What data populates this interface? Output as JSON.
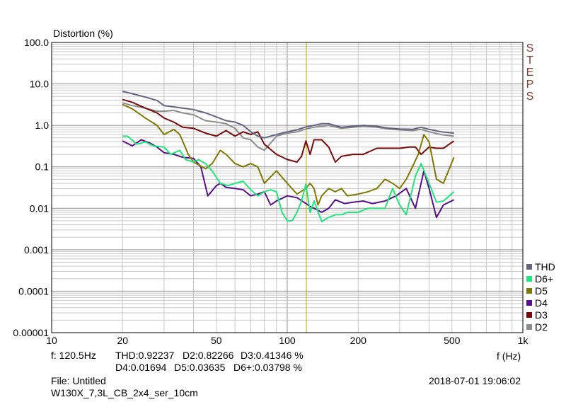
{
  "chart_data": {
    "type": "line",
    "ylabel": "Distortion (%)",
    "xlabel": "f (Hz)",
    "x_scale": "log",
    "y_scale": "log",
    "xlim": [
      10,
      1000
    ],
    "ylim": [
      1e-05,
      100
    ],
    "grid": true,
    "legend_position": "right-bottom",
    "x_ticks": [
      {
        "value": 10,
        "label": "10"
      },
      {
        "value": 20,
        "label": "20"
      },
      {
        "value": 50,
        "label": "50"
      },
      {
        "value": 100,
        "label": "100"
      },
      {
        "value": 200,
        "label": "200"
      },
      {
        "value": 500,
        "label": "500"
      },
      {
        "value": 1000,
        "label": "1k"
      }
    ],
    "y_ticks": [
      {
        "value": 100,
        "label": "100.0"
      },
      {
        "value": 10,
        "label": "10.0"
      },
      {
        "value": 1,
        "label": "1.0"
      },
      {
        "value": 0.1,
        "label": "0.1"
      },
      {
        "value": 0.01,
        "label": "0.01"
      },
      {
        "value": 0.001,
        "label": "0.001"
      },
      {
        "value": 0.0001,
        "label": "0.0001"
      },
      {
        "value": 1e-05,
        "label": "0.00001"
      }
    ],
    "cursor_x": 120.5,
    "series": [
      {
        "name": "THD",
        "color": "#646482",
        "x": [
          20,
          22,
          25,
          28,
          30,
          33,
          36,
          40,
          45,
          50,
          55,
          60,
          65,
          70,
          75,
          80,
          90,
          100,
          110,
          120,
          130,
          140,
          150,
          170,
          190,
          210,
          240,
          270,
          300,
          340,
          370,
          400,
          450,
          510
        ],
        "y": [
          6.6,
          5.8,
          4.8,
          4.0,
          3.0,
          2.8,
          2.6,
          2.4,
          2.0,
          1.6,
          1.3,
          1.2,
          1.0,
          0.7,
          0.55,
          0.5,
          0.6,
          0.7,
          0.78,
          0.92,
          1.0,
          1.1,
          1.1,
          0.9,
          0.95,
          1.0,
          0.95,
          0.85,
          0.82,
          0.8,
          0.9,
          0.8,
          0.7,
          0.65
        ]
      },
      {
        "name": "D6+",
        "color": "#1ee67a",
        "x": [
          20,
          21,
          23,
          25,
          27,
          30,
          32,
          35,
          37,
          40,
          42,
          45,
          48,
          52,
          56,
          60,
          65,
          70,
          75,
          80,
          85,
          90,
          95,
          100,
          105,
          110,
          115,
          120,
          125,
          130,
          140,
          150,
          160,
          170,
          180,
          200,
          220,
          240,
          260,
          280,
          300,
          320,
          350,
          370,
          400,
          430,
          460,
          510
        ],
        "y": [
          0.55,
          0.55,
          0.35,
          0.4,
          0.32,
          0.3,
          0.2,
          0.25,
          0.15,
          0.13,
          0.15,
          0.12,
          0.08,
          0.04,
          0.035,
          0.04,
          0.045,
          0.028,
          0.02,
          0.025,
          0.028,
          0.025,
          0.008,
          0.005,
          0.005,
          0.008,
          0.015,
          0.038,
          0.008,
          0.015,
          0.0048,
          0.006,
          0.007,
          0.007,
          0.008,
          0.008,
          0.01,
          0.01,
          0.01,
          0.03,
          0.012,
          0.007,
          0.06,
          0.12,
          0.04,
          0.014,
          0.015,
          0.025
        ]
      },
      {
        "name": "D5",
        "color": "#807800",
        "x": [
          20,
          22,
          25,
          28,
          30,
          33,
          35,
          38,
          40,
          45,
          48,
          52,
          55,
          60,
          65,
          70,
          75,
          80,
          90,
          100,
          110,
          120,
          125,
          130,
          135,
          140,
          150,
          160,
          170,
          180,
          200,
          220,
          240,
          260,
          280,
          300,
          320,
          340,
          360,
          380,
          400,
          430,
          460,
          510
        ],
        "y": [
          3.2,
          2.5,
          1.5,
          1.0,
          0.6,
          0.8,
          0.6,
          0.2,
          0.13,
          0.09,
          0.12,
          0.25,
          0.2,
          0.12,
          0.1,
          0.12,
          0.1,
          0.04,
          0.08,
          0.04,
          0.022,
          0.03,
          0.04,
          0.03,
          0.012,
          0.02,
          0.03,
          0.025,
          0.03,
          0.02,
          0.022,
          0.025,
          0.03,
          0.05,
          0.04,
          0.03,
          0.05,
          0.1,
          0.2,
          0.6,
          0.4,
          0.05,
          0.04,
          0.17
        ]
      },
      {
        "name": "D4",
        "color": "#5a0f8c",
        "x": [
          20,
          22,
          24,
          26,
          28,
          30,
          33,
          36,
          40,
          43,
          46,
          50,
          52,
          55,
          60,
          65,
          70,
          75,
          80,
          85,
          90,
          100,
          110,
          120,
          125,
          130,
          140,
          150,
          160,
          175,
          190,
          210,
          230,
          260,
          290,
          320,
          350,
          380,
          400,
          430,
          460,
          510
        ],
        "y": [
          0.42,
          0.32,
          0.45,
          0.38,
          0.3,
          0.22,
          0.2,
          0.17,
          0.16,
          0.1,
          0.02,
          0.035,
          0.04,
          0.032,
          0.03,
          0.028,
          0.02,
          0.022,
          0.025,
          0.012,
          0.015,
          0.02,
          0.018,
          0.013,
          0.011,
          0.01,
          0.008,
          0.01,
          0.016,
          0.013,
          0.014,
          0.015,
          0.013,
          0.015,
          0.02,
          0.03,
          0.01,
          0.08,
          0.03,
          0.006,
          0.012,
          0.016
        ]
      },
      {
        "name": "D3",
        "color": "#7a0a0a",
        "x": [
          20,
          22,
          25,
          28,
          30,
          33,
          36,
          40,
          45,
          50,
          55,
          60,
          65,
          70,
          75,
          80,
          90,
          100,
          110,
          115,
          120,
          125,
          130,
          140,
          150,
          160,
          170,
          190,
          210,
          240,
          270,
          300,
          330,
          350,
          370,
          400,
          430,
          460,
          510
        ],
        "y": [
          4.2,
          3.6,
          2.6,
          2.0,
          1.5,
          1.2,
          0.9,
          0.85,
          0.65,
          0.55,
          0.75,
          0.55,
          0.7,
          0.6,
          0.7,
          0.35,
          0.2,
          0.15,
          0.13,
          0.18,
          0.42,
          0.2,
          0.45,
          0.45,
          0.3,
          0.13,
          0.18,
          0.2,
          0.2,
          0.28,
          0.28,
          0.28,
          0.3,
          0.3,
          0.2,
          0.3,
          0.28,
          0.28,
          0.42
        ]
      },
      {
        "name": "D2",
        "color": "#8c8c8c",
        "x": [
          20,
          22,
          25,
          28,
          30,
          33,
          36,
          40,
          45,
          50,
          55,
          60,
          65,
          70,
          75,
          80,
          90,
          100,
          110,
          120,
          130,
          140,
          150,
          170,
          190,
          210,
          240,
          270,
          300,
          340,
          370,
          400,
          450,
          510
        ],
        "y": [
          3.5,
          3.0,
          2.6,
          2.2,
          2.2,
          2.3,
          2.0,
          1.8,
          1.3,
          1.2,
          1.1,
          0.85,
          0.5,
          0.45,
          0.3,
          0.25,
          0.55,
          0.65,
          0.7,
          0.82,
          0.9,
          0.95,
          1.0,
          0.85,
          0.9,
          0.95,
          0.9,
          0.82,
          0.78,
          0.75,
          0.8,
          0.7,
          0.6,
          0.55
        ]
      }
    ]
  },
  "steps_label": [
    "S",
    "T",
    "E",
    "P",
    "S"
  ],
  "info": {
    "freq": "f: 120.5Hz",
    "thd": "THD:0.92237",
    "d2": "D2:0.82266",
    "d3": "D3:0.41346 %",
    "d4": "D4:0.01694",
    "d5": "D5:0.03635",
    "d6": "D6+:0.03798 %",
    "file": "File: Untitled",
    "name": "W130X_7,3L_CB_2x4_ser_10cm",
    "timestamp": "2018-07-01 19:06:02"
  },
  "legend": [
    {
      "label": "THD",
      "color": "#646482"
    },
    {
      "label": "D6+",
      "color": "#1ee67a"
    },
    {
      "label": "D5",
      "color": "#807800"
    },
    {
      "label": "D4",
      "color": "#5a0f8c"
    },
    {
      "label": "D3",
      "color": "#7a0a0a"
    },
    {
      "label": "D2",
      "color": "#8c8c8c"
    }
  ]
}
